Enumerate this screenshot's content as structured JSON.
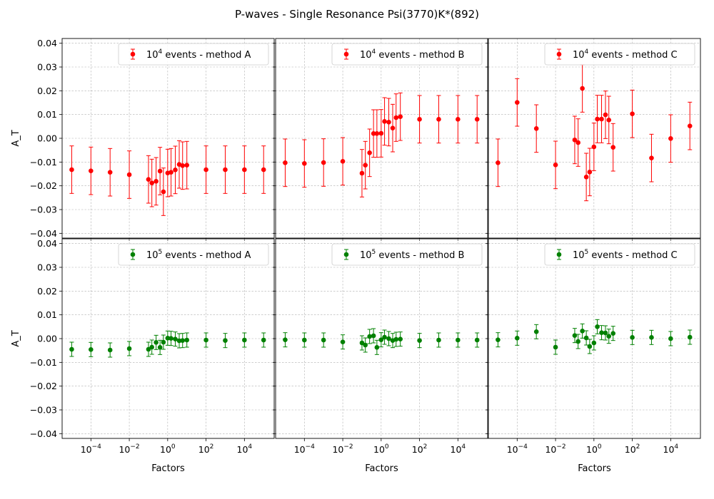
{
  "figure": {
    "title": "P-waves - Single Resonance Psi(3770)K*(892)"
  },
  "chart_data": [
    {
      "type": "scatter",
      "panel": "top-left",
      "legend": "10^4 events - method A",
      "legend_base": "10",
      "legend_exp": "4",
      "legend_rest": " events - method A",
      "color": "#ff0000",
      "ylabel": "A_T",
      "xlabel": "",
      "xscale": "log",
      "ylim": [
        -0.042,
        0.042
      ],
      "grid": true,
      "legend_position": "top-right",
      "points": [
        {
          "x": 1e-05,
          "y": -0.0132,
          "err": 0.01
        },
        {
          "x": 0.0001,
          "y": -0.0137,
          "err": 0.01
        },
        {
          "x": 0.001,
          "y": -0.0143,
          "err": 0.01
        },
        {
          "x": 0.01,
          "y": -0.0153,
          "err": 0.01
        },
        {
          "x": 0.1,
          "y": -0.0173,
          "err": 0.01
        },
        {
          "x": 0.15,
          "y": -0.0188,
          "err": 0.01
        },
        {
          "x": 0.25,
          "y": -0.0181,
          "err": 0.01
        },
        {
          "x": 0.4,
          "y": -0.0138,
          "err": 0.01
        },
        {
          "x": 0.6,
          "y": -0.0225,
          "err": 0.01
        },
        {
          "x": 1.0,
          "y": -0.0146,
          "err": 0.01
        },
        {
          "x": 1.5,
          "y": -0.0143,
          "err": 0.01
        },
        {
          "x": 2.5,
          "y": -0.0133,
          "err": 0.01
        },
        {
          "x": 4,
          "y": -0.011,
          "err": 0.01
        },
        {
          "x": 6,
          "y": -0.0115,
          "err": 0.01
        },
        {
          "x": 10,
          "y": -0.0113,
          "err": 0.01
        },
        {
          "x": 100,
          "y": -0.0132,
          "err": 0.01
        },
        {
          "x": 1000,
          "y": -0.0132,
          "err": 0.01
        },
        {
          "x": 10000,
          "y": -0.0132,
          "err": 0.01
        },
        {
          "x": 100000,
          "y": -0.0132,
          "err": 0.01
        }
      ]
    },
    {
      "type": "scatter",
      "panel": "top-middle",
      "legend": "10^4 events - method B",
      "legend_base": "10",
      "legend_exp": "4",
      "legend_rest": " events - method B",
      "color": "#ff0000",
      "ylabel": "",
      "xlabel": "",
      "xscale": "log",
      "ylim": [
        -0.042,
        0.042
      ],
      "grid": true,
      "legend_position": "top-right",
      "points": [
        {
          "x": 1e-05,
          "y": -0.0103,
          "err": 0.01
        },
        {
          "x": 0.0001,
          "y": -0.0106,
          "err": 0.01
        },
        {
          "x": 0.001,
          "y": -0.0102,
          "err": 0.01
        },
        {
          "x": 0.01,
          "y": -0.0097,
          "err": 0.01
        },
        {
          "x": 0.1,
          "y": -0.0147,
          "err": 0.01
        },
        {
          "x": 0.15,
          "y": -0.0113,
          "err": 0.01
        },
        {
          "x": 0.25,
          "y": -0.0061,
          "err": 0.01
        },
        {
          "x": 0.4,
          "y": 0.002,
          "err": 0.01
        },
        {
          "x": 0.6,
          "y": 0.002,
          "err": 0.01
        },
        {
          "x": 1.0,
          "y": 0.0021,
          "err": 0.01
        },
        {
          "x": 1.5,
          "y": 0.0071,
          "err": 0.01
        },
        {
          "x": 2.5,
          "y": 0.0068,
          "err": 0.01
        },
        {
          "x": 4,
          "y": 0.0043,
          "err": 0.01
        },
        {
          "x": 6,
          "y": 0.0087,
          "err": 0.01
        },
        {
          "x": 10,
          "y": 0.0091,
          "err": 0.01
        },
        {
          "x": 100,
          "y": 0.008,
          "err": 0.01
        },
        {
          "x": 1000,
          "y": 0.008,
          "err": 0.01
        },
        {
          "x": 10000,
          "y": 0.008,
          "err": 0.01
        },
        {
          "x": 100000,
          "y": 0.008,
          "err": 0.01
        }
      ]
    },
    {
      "type": "scatter",
      "panel": "top-right",
      "legend": "10^4 events - method C",
      "legend_base": "10",
      "legend_exp": "4",
      "legend_rest": " events - method C",
      "color": "#ff0000",
      "ylabel": "",
      "xlabel": "",
      "xscale": "log",
      "ylim": [
        -0.042,
        0.042
      ],
      "grid": true,
      "legend_position": "top-right",
      "points": [
        {
          "x": 1e-05,
          "y": -0.0103,
          "err": 0.01
        },
        {
          "x": 0.0001,
          "y": 0.0151,
          "err": 0.01
        },
        {
          "x": 0.001,
          "y": 0.0041,
          "err": 0.01
        },
        {
          "x": 0.01,
          "y": -0.0112,
          "err": 0.01
        },
        {
          "x": 0.1,
          "y": -0.0007,
          "err": 0.01
        },
        {
          "x": 0.15,
          "y": -0.0018,
          "err": 0.01
        },
        {
          "x": 0.25,
          "y": 0.021,
          "err": 0.01
        },
        {
          "x": 0.4,
          "y": -0.0163,
          "err": 0.01
        },
        {
          "x": 0.6,
          "y": -0.0142,
          "err": 0.01
        },
        {
          "x": 1.0,
          "y": -0.0036,
          "err": 0.01
        },
        {
          "x": 1.5,
          "y": 0.0081,
          "err": 0.01
        },
        {
          "x": 2.5,
          "y": 0.0081,
          "err": 0.01
        },
        {
          "x": 4,
          "y": 0.0099,
          "err": 0.01
        },
        {
          "x": 6,
          "y": 0.0077,
          "err": 0.01
        },
        {
          "x": 10,
          "y": -0.0038,
          "err": 0.01
        },
        {
          "x": 100,
          "y": 0.0103,
          "err": 0.01
        },
        {
          "x": 1000,
          "y": -0.0083,
          "err": 0.01
        },
        {
          "x": 10000,
          "y": -0.0001,
          "err": 0.01
        },
        {
          "x": 100000,
          "y": 0.0052,
          "err": 0.01
        }
      ]
    },
    {
      "type": "scatter",
      "panel": "bottom-left",
      "legend": "10^5 events - method A",
      "legend_base": "10",
      "legend_exp": "5",
      "legend_rest": " events - method A",
      "color": "#008000",
      "ylabel": "A_T",
      "xlabel": "Factors",
      "xscale": "log",
      "ylim": [
        -0.042,
        0.042
      ],
      "grid": true,
      "legend_position": "top-right",
      "points": [
        {
          "x": 1e-05,
          "y": -0.0045,
          "err": 0.003
        },
        {
          "x": 0.0001,
          "y": -0.0046,
          "err": 0.003
        },
        {
          "x": 0.001,
          "y": -0.0048,
          "err": 0.003
        },
        {
          "x": 0.01,
          "y": -0.0042,
          "err": 0.003
        },
        {
          "x": 0.1,
          "y": -0.0045,
          "err": 0.003
        },
        {
          "x": 0.15,
          "y": -0.0036,
          "err": 0.003
        },
        {
          "x": 0.25,
          "y": -0.0016,
          "err": 0.003
        },
        {
          "x": 0.4,
          "y": -0.0037,
          "err": 0.003
        },
        {
          "x": 0.6,
          "y": -0.0015,
          "err": 0.003
        },
        {
          "x": 1.0,
          "y": 0.0002,
          "err": 0.003
        },
        {
          "x": 1.5,
          "y": 0.0001,
          "err": 0.003
        },
        {
          "x": 2.5,
          "y": -0.0002,
          "err": 0.003
        },
        {
          "x": 4,
          "y": -0.0009,
          "err": 0.003
        },
        {
          "x": 6,
          "y": -0.0008,
          "err": 0.003
        },
        {
          "x": 10,
          "y": -0.0006,
          "err": 0.003
        },
        {
          "x": 100,
          "y": -0.0006,
          "err": 0.003
        },
        {
          "x": 1000,
          "y": -0.0008,
          "err": 0.003
        },
        {
          "x": 10000,
          "y": -0.0006,
          "err": 0.003
        },
        {
          "x": 100000,
          "y": -0.0006,
          "err": 0.003
        }
      ]
    },
    {
      "type": "scatter",
      "panel": "bottom-middle",
      "legend": "10^5 events - method B",
      "legend_base": "10",
      "legend_exp": "5",
      "legend_rest": " events - method B",
      "color": "#008000",
      "ylabel": "",
      "xlabel": "Factors",
      "xscale": "log",
      "ylim": [
        -0.042,
        0.042
      ],
      "grid": true,
      "legend_position": "top-right",
      "points": [
        {
          "x": 1e-05,
          "y": -0.0005,
          "err": 0.003
        },
        {
          "x": 0.0001,
          "y": -0.0006,
          "err": 0.003
        },
        {
          "x": 0.001,
          "y": -0.0006,
          "err": 0.003
        },
        {
          "x": 0.01,
          "y": -0.0014,
          "err": 0.003
        },
        {
          "x": 0.1,
          "y": -0.0018,
          "err": 0.003
        },
        {
          "x": 0.15,
          "y": -0.0027,
          "err": 0.003
        },
        {
          "x": 0.25,
          "y": 0.0009,
          "err": 0.003
        },
        {
          "x": 0.4,
          "y": 0.0012,
          "err": 0.003
        },
        {
          "x": 0.6,
          "y": -0.0037,
          "err": 0.003
        },
        {
          "x": 1.0,
          "y": -0.0005,
          "err": 0.003
        },
        {
          "x": 1.5,
          "y": 0.0006,
          "err": 0.003
        },
        {
          "x": 2.5,
          "y": 0.0,
          "err": 0.003
        },
        {
          "x": 4,
          "y": -0.0008,
          "err": 0.003
        },
        {
          "x": 6,
          "y": -0.0003,
          "err": 0.003
        },
        {
          "x": 10,
          "y": -0.0002,
          "err": 0.003
        },
        {
          "x": 100,
          "y": -0.0008,
          "err": 0.003
        },
        {
          "x": 1000,
          "y": -0.0006,
          "err": 0.003
        },
        {
          "x": 10000,
          "y": -0.0006,
          "err": 0.003
        },
        {
          "x": 100000,
          "y": -0.0006,
          "err": 0.003
        }
      ]
    },
    {
      "type": "scatter",
      "panel": "bottom-right",
      "legend": "10^5 events - method C",
      "legend_base": "10",
      "legend_exp": "5",
      "legend_rest": " events - method C",
      "color": "#008000",
      "ylabel": "",
      "xlabel": "Factors",
      "xscale": "log",
      "ylim": [
        -0.042,
        0.042
      ],
      "grid": true,
      "legend_position": "top-right",
      "points": [
        {
          "x": 1e-05,
          "y": -0.0005,
          "err": 0.003
        },
        {
          "x": 0.0001,
          "y": 0.0002,
          "err": 0.003
        },
        {
          "x": 0.001,
          "y": 0.0029,
          "err": 0.003
        },
        {
          "x": 0.01,
          "y": -0.0036,
          "err": 0.003
        },
        {
          "x": 0.1,
          "y": 0.0013,
          "err": 0.003
        },
        {
          "x": 0.15,
          "y": -0.0012,
          "err": 0.003
        },
        {
          "x": 0.25,
          "y": 0.0032,
          "err": 0.003
        },
        {
          "x": 0.4,
          "y": 0.0003,
          "err": 0.003
        },
        {
          "x": 0.6,
          "y": -0.0033,
          "err": 0.003
        },
        {
          "x": 1.0,
          "y": -0.0018,
          "err": 0.003
        },
        {
          "x": 1.5,
          "y": 0.005,
          "err": 0.003
        },
        {
          "x": 2.5,
          "y": 0.0025,
          "err": 0.003
        },
        {
          "x": 4,
          "y": 0.0024,
          "err": 0.003
        },
        {
          "x": 6,
          "y": 0.001,
          "err": 0.003
        },
        {
          "x": 10,
          "y": 0.0022,
          "err": 0.003
        },
        {
          "x": 100,
          "y": 0.0005,
          "err": 0.003
        },
        {
          "x": 1000,
          "y": 0.0005,
          "err": 0.003
        },
        {
          "x": 10000,
          "y": 0.0,
          "err": 0.003
        },
        {
          "x": 100000,
          "y": 0.0006,
          "err": 0.003
        }
      ]
    }
  ],
  "axes": {
    "y_ticks": [
      {
        "value": 0.04,
        "label": "0.04"
      },
      {
        "value": 0.03,
        "label": "0.03"
      },
      {
        "value": 0.02,
        "label": "0.02"
      },
      {
        "value": 0.01,
        "label": "0.01"
      },
      {
        "value": 0.0,
        "label": "0.00"
      },
      {
        "value": -0.01,
        "label": "−0.01"
      },
      {
        "value": -0.02,
        "label": "−0.02"
      },
      {
        "value": -0.03,
        "label": "−0.03"
      },
      {
        "value": -0.04,
        "label": "−0.04"
      }
    ],
    "x_ticks": [
      {
        "value": 0.0001,
        "base": "10",
        "exp": "−4"
      },
      {
        "value": 0.01,
        "base": "10",
        "exp": "−2"
      },
      {
        "value": 1,
        "base": "10",
        "exp": "0"
      },
      {
        "value": 100,
        "base": "10",
        "exp": "2"
      },
      {
        "value": 10000,
        "base": "10",
        "exp": "4"
      }
    ],
    "xlim_log10": [
      -5.5,
      5.55
    ]
  }
}
